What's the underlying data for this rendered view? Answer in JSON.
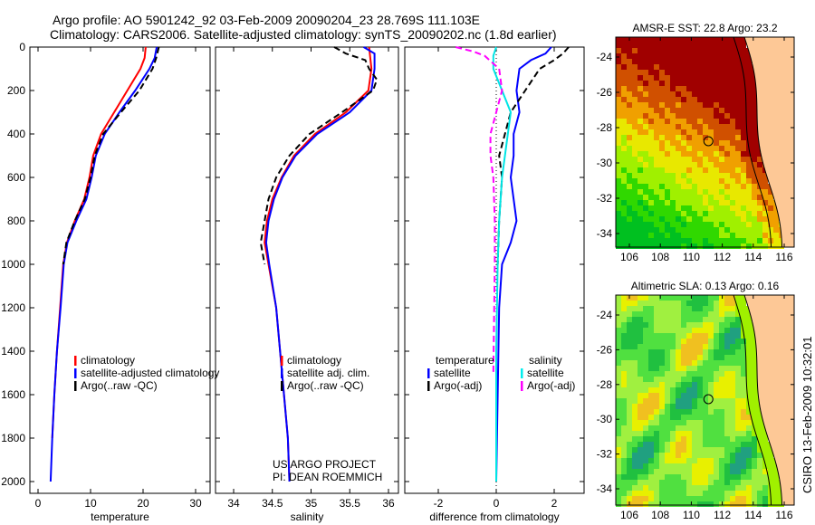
{
  "title_line1": "Argo profile: AO 5901242_92 03-Feb-2009 20090204_23 28.769S 111.103E",
  "title_line2": "Climatology: CARS2006. Satellite-adjusted climatology: synTS_20090202.nc (1.8d earlier)",
  "side_label": "CSIRO 13-Feb-2009 10:32:01",
  "credit": [
    "US ARGO PROJECT",
    "PI: DEAN ROEMMICH"
  ],
  "chart_data": [
    {
      "type": "line",
      "xlabel": "temperature",
      "ylabel": "",
      "xlim": [
        -2,
        31
      ],
      "ylim": [
        2050,
        0
      ],
      "xticks": [
        "0",
        "10",
        "20",
        "30"
      ],
      "yticks": [
        "0",
        "200",
        "400",
        "600",
        "800",
        "1000",
        "1200",
        "1400",
        "1600",
        "1800",
        "2000"
      ],
      "legend": [
        "climatology",
        "satellite-adjusted climatology",
        "Argo(..raw -QC)"
      ],
      "series": [
        {
          "name": "climatology",
          "color": "#ff0000",
          "dash": false,
          "depth": [
            0,
            50,
            100,
            200,
            300,
            400,
            500,
            600,
            700,
            800,
            900,
            1000,
            1200,
            1400,
            1600,
            1800
          ],
          "values": [
            20.5,
            20.3,
            19.5,
            17,
            14.5,
            12,
            10.5,
            9.8,
            8.8,
            7,
            5.5,
            4.8,
            4.2,
            3.6,
            3.1,
            2.7
          ]
        },
        {
          "name": "satellite-adjusted climatology",
          "color": "#0000ff",
          "dash": false,
          "depth": [
            0,
            50,
            100,
            200,
            300,
            400,
            500,
            600,
            700,
            800,
            900,
            1000,
            1200,
            1400,
            1600,
            1800,
            2000
          ],
          "values": [
            22.6,
            22.2,
            21.2,
            18.5,
            15.5,
            12.7,
            11,
            10.2,
            9.2,
            7.3,
            5.6,
            4.9,
            4.3,
            3.6,
            3.1,
            2.7,
            2.4
          ]
        },
        {
          "name": "Argo(..raw -QC)",
          "color": "#000000",
          "dash": true,
          "depth": [
            0,
            50,
            100,
            200,
            300,
            400,
            500,
            600,
            700,
            800,
            900,
            1000
          ],
          "values": [
            23,
            22.5,
            21.8,
            19.3,
            15.8,
            12.4,
            10.8,
            10,
            8.9,
            7,
            5.4,
            4.8
          ]
        }
      ]
    },
    {
      "type": "line",
      "xlabel": "salinity",
      "ylabel": "",
      "xlim": [
        33.8,
        36.1
      ],
      "ylim": [
        2050,
        0
      ],
      "xticks": [
        "34",
        "34.5",
        "35",
        "35.5",
        "36"
      ],
      "legend": [
        "climatology",
        "satellite adj. clim.",
        "Argo(..raw -QC)"
      ],
      "series": [
        {
          "name": "climatology",
          "color": "#ff0000",
          "dash": false,
          "depth": [
            0,
            100,
            200,
            300,
            400,
            500,
            600,
            700,
            800,
            900,
            1000,
            1200,
            1400,
            1600,
            1800,
            2000
          ],
          "values": [
            35.75,
            35.78,
            35.74,
            35.45,
            35.05,
            34.78,
            34.62,
            34.5,
            34.43,
            34.4,
            34.45,
            34.55,
            34.6,
            34.65,
            34.7,
            34.72
          ]
        },
        {
          "name": "satellite adj. clim.",
          "color": "#0000ff",
          "dash": false,
          "depth": [
            0,
            30,
            100,
            200,
            300,
            400,
            500,
            600,
            700,
            800,
            900,
            1000,
            1200,
            1400,
            1600,
            1800,
            2000
          ],
          "values": [
            35.68,
            35.82,
            35.82,
            35.78,
            35.5,
            35.08,
            34.8,
            34.63,
            34.52,
            34.45,
            34.42,
            34.46,
            34.55,
            34.6,
            34.65,
            34.7,
            34.72
          ]
        },
        {
          "name": "Argo(..raw -QC)",
          "color": "#000000",
          "dash": true,
          "depth": [
            0,
            30,
            60,
            100,
            150,
            200,
            300,
            400,
            500,
            600,
            700,
            800,
            900,
            1000
          ],
          "values": [
            35.3,
            35.45,
            35.7,
            35.75,
            35.85,
            35.8,
            35.4,
            34.98,
            34.72,
            34.55,
            34.45,
            34.4,
            34.35,
            34.4
          ]
        }
      ]
    },
    {
      "type": "line",
      "xlabel": "difference from climatology",
      "ylabel": "",
      "xlim": [
        -3.1,
        3.1
      ],
      "ylim": [
        2050,
        0
      ],
      "xticks": [
        "-2",
        "0",
        "2"
      ],
      "legend_titles": [
        "temperature",
        "salinity"
      ],
      "legend": [
        "satellite",
        "Argo(-adj)",
        "satellite",
        "Argo(-adj)"
      ],
      "series": [
        {
          "name": "temperature satellite",
          "color": "#0000ff",
          "dash": false,
          "depth": [
            0,
            30,
            60,
            100,
            200,
            300,
            400,
            500,
            600,
            700,
            800,
            900,
            1000,
            1200,
            1600,
            2000
          ],
          "values": [
            1.9,
            1.7,
            1.2,
            0.8,
            0.7,
            0.8,
            0.6,
            0.6,
            0.5,
            0.6,
            0.7,
            0.5,
            0.2,
            0.1,
            0.05,
            0
          ]
        },
        {
          "name": "temperature Argo(-adj)",
          "color": "#000000",
          "dash": true,
          "depth": [
            0,
            30,
            60,
            100,
            200,
            300,
            400,
            500,
            600,
            800,
            1000
          ],
          "values": [
            2.5,
            2.3,
            2.0,
            1.5,
            1.0,
            0.5,
            0.3,
            0.1,
            0.2,
            0.1,
            0.05
          ]
        },
        {
          "name": "salinity satellite",
          "color": "#00e5e5",
          "dash": false,
          "depth": [
            0,
            40,
            100,
            200,
            300,
            400,
            600,
            800,
            1000,
            1400,
            2000
          ],
          "values": [
            0,
            -0.1,
            -0.1,
            0.2,
            0.5,
            0.4,
            0.2,
            0.1,
            0.05,
            0,
            0
          ]
        },
        {
          "name": "salinity Argo(-adj)",
          "color": "#ff00ff",
          "dash": true,
          "depth": [
            0,
            20,
            40,
            100,
            200,
            300,
            400,
            500,
            600,
            800,
            1000,
            1500
          ],
          "values": [
            -1.4,
            -0.8,
            -0.4,
            0.1,
            0.2,
            0.0,
            -0.2,
            -0.2,
            -0.1,
            -0.05,
            -0.05,
            -0.1
          ]
        }
      ]
    },
    {
      "type": "heatmap",
      "title": "AMSR-E SST: 22.8 Argo: 23.2",
      "xticks": [
        "106",
        "108",
        "110",
        "112",
        "114",
        "116"
      ],
      "yticks": [
        "-24",
        "-26",
        "-28",
        "-30",
        "-32",
        "-34"
      ],
      "float_position": [
        111.103,
        -28.769
      ]
    },
    {
      "type": "heatmap",
      "title": "Altimetric SLA: 0.13 Argo: 0.16",
      "xticks": [
        "106",
        "108",
        "110",
        "112",
        "114",
        "116"
      ],
      "yticks": [
        "-24",
        "-26",
        "-28",
        "-30",
        "-32",
        "-34"
      ],
      "float_position": [
        111.103,
        -28.769
      ]
    }
  ]
}
